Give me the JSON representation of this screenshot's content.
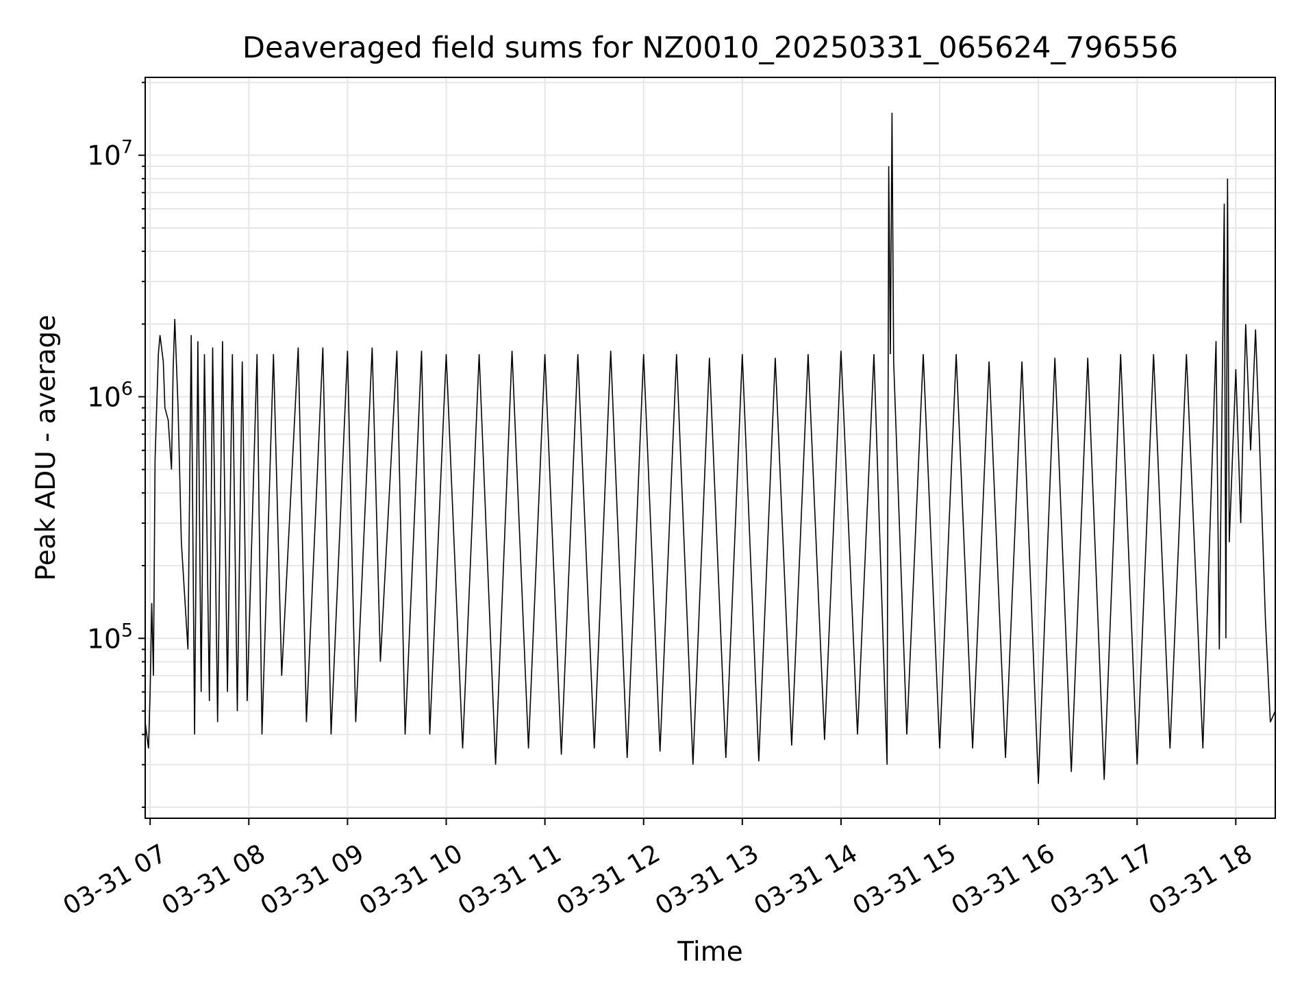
{
  "chart_data": {
    "type": "line",
    "title": "Deaveraged field sums for NZ0010_20250331_065624_796556",
    "xlabel": "Time",
    "ylabel": "Peak ADU - average",
    "y_scale": "log",
    "grid": true,
    "line_color": "#000000",
    "grid_color": "#e6e6e6",
    "xlim": [
      "2025-03-31 06:57",
      "2025-03-31 18:24"
    ],
    "ylim": [
      18000,
      21000000
    ],
    "x_ticks": [
      {
        "t": "2025-03-31 07:00",
        "label": "03-31 07"
      },
      {
        "t": "2025-03-31 08:00",
        "label": "03-31 08"
      },
      {
        "t": "2025-03-31 09:00",
        "label": "03-31 09"
      },
      {
        "t": "2025-03-31 10:00",
        "label": "03-31 10"
      },
      {
        "t": "2025-03-31 11:00",
        "label": "03-31 11"
      },
      {
        "t": "2025-03-31 12:00",
        "label": "03-31 12"
      },
      {
        "t": "2025-03-31 13:00",
        "label": "03-31 13"
      },
      {
        "t": "2025-03-31 14:00",
        "label": "03-31 14"
      },
      {
        "t": "2025-03-31 15:00",
        "label": "03-31 15"
      },
      {
        "t": "2025-03-31 16:00",
        "label": "03-31 16"
      },
      {
        "t": "2025-03-31 17:00",
        "label": "03-31 17"
      },
      {
        "t": "2025-03-31 18:00",
        "label": "03-31 18"
      }
    ],
    "y_ticks": [
      {
        "value": 100000,
        "base": "10",
        "exp": "5"
      },
      {
        "value": 1000000,
        "base": "10",
        "exp": "6"
      },
      {
        "value": 10000000,
        "base": "10",
        "exp": "7"
      }
    ],
    "series": [
      {
        "points": [
          [
            "2025-03-31 06:57",
            45000
          ],
          [
            "2025-03-31 06:59",
            35000
          ],
          [
            "2025-03-31 07:00",
            60000
          ],
          [
            "2025-03-31 07:01",
            140000
          ],
          [
            "2025-03-31 07:02",
            70000
          ],
          [
            "2025-03-31 07:03",
            550000
          ],
          [
            "2025-03-31 07:05",
            1500000
          ],
          [
            "2025-03-31 07:06",
            1800000
          ],
          [
            "2025-03-31 07:08",
            1400000
          ],
          [
            "2025-03-31 07:09",
            900000
          ],
          [
            "2025-03-31 07:11",
            800000
          ],
          [
            "2025-03-31 07:13",
            500000
          ],
          [
            "2025-03-31 07:14",
            1300000
          ],
          [
            "2025-03-31 07:15",
            2100000
          ],
          [
            "2025-03-31 07:17",
            900000
          ],
          [
            "2025-03-31 07:19",
            250000
          ],
          [
            "2025-03-31 07:21",
            150000
          ],
          [
            "2025-03-31 07:23",
            90000
          ],
          [
            "2025-03-31 07:25",
            1800000
          ],
          [
            "2025-03-31 07:27",
            40000
          ],
          [
            "2025-03-31 07:29",
            1700000
          ],
          [
            "2025-03-31 07:31",
            60000
          ],
          [
            "2025-03-31 07:33",
            1500000
          ],
          [
            "2025-03-31 07:36",
            55000
          ],
          [
            "2025-03-31 07:38",
            1600000
          ],
          [
            "2025-03-31 07:41",
            45000
          ],
          [
            "2025-03-31 07:44",
            1700000
          ],
          [
            "2025-03-31 07:47",
            60000
          ],
          [
            "2025-03-31 07:50",
            1500000
          ],
          [
            "2025-03-31 07:53",
            50000
          ],
          [
            "2025-03-31 07:56",
            1400000
          ],
          [
            "2025-03-31 07:59",
            55000
          ],
          [
            "2025-03-31 08:05",
            1500000
          ],
          [
            "2025-03-31 08:08",
            40000
          ],
          [
            "2025-03-31 08:15",
            1500000
          ],
          [
            "2025-03-31 08:20",
            70000
          ],
          [
            "2025-03-31 08:30",
            1600000
          ],
          [
            "2025-03-31 08:35",
            45000
          ],
          [
            "2025-03-31 08:45",
            1600000
          ],
          [
            "2025-03-31 08:50",
            40000
          ],
          [
            "2025-03-31 09:00",
            1550000
          ],
          [
            "2025-03-31 09:05",
            45000
          ],
          [
            "2025-03-31 09:15",
            1600000
          ],
          [
            "2025-03-31 09:20",
            80000
          ],
          [
            "2025-03-31 09:30",
            1550000
          ],
          [
            "2025-03-31 09:35",
            40000
          ],
          [
            "2025-03-31 09:45",
            1550000
          ],
          [
            "2025-03-31 09:50",
            40000
          ],
          [
            "2025-03-31 10:00",
            1500000
          ],
          [
            "2025-03-31 10:10",
            35000
          ],
          [
            "2025-03-31 10:20",
            1500000
          ],
          [
            "2025-03-31 10:30",
            30000
          ],
          [
            "2025-03-31 10:40",
            1550000
          ],
          [
            "2025-03-31 10:50",
            35000
          ],
          [
            "2025-03-31 11:00",
            1500000
          ],
          [
            "2025-03-31 11:10",
            33000
          ],
          [
            "2025-03-31 11:20",
            1500000
          ],
          [
            "2025-03-31 11:30",
            35000
          ],
          [
            "2025-03-31 11:40",
            1550000
          ],
          [
            "2025-03-31 11:50",
            32000
          ],
          [
            "2025-03-31 12:00",
            1500000
          ],
          [
            "2025-03-31 12:10",
            34000
          ],
          [
            "2025-03-31 12:20",
            1500000
          ],
          [
            "2025-03-31 12:30",
            30000
          ],
          [
            "2025-03-31 12:40",
            1450000
          ],
          [
            "2025-03-31 12:50",
            32000
          ],
          [
            "2025-03-31 13:00",
            1500000
          ],
          [
            "2025-03-31 13:10",
            31000
          ],
          [
            "2025-03-31 13:20",
            1450000
          ],
          [
            "2025-03-31 13:30",
            36000
          ],
          [
            "2025-03-31 13:40",
            1500000
          ],
          [
            "2025-03-31 13:50",
            38000
          ],
          [
            "2025-03-31 14:00",
            1550000
          ],
          [
            "2025-03-31 14:10",
            40000
          ],
          [
            "2025-03-31 14:20",
            1500000
          ],
          [
            "2025-03-31 14:28",
            30000
          ],
          [
            "2025-03-31 14:29",
            9000000
          ],
          [
            "2025-03-31 14:30",
            1500000
          ],
          [
            "2025-03-31 14:31",
            15000000
          ],
          [
            "2025-03-31 14:32",
            1400000
          ],
          [
            "2025-03-31 14:40",
            40000
          ],
          [
            "2025-03-31 14:50",
            1500000
          ],
          [
            "2025-03-31 15:00",
            35000
          ],
          [
            "2025-03-31 15:10",
            1500000
          ],
          [
            "2025-03-31 15:20",
            35000
          ],
          [
            "2025-03-31 15:30",
            1400000
          ],
          [
            "2025-03-31 15:40",
            32000
          ],
          [
            "2025-03-31 15:50",
            1400000
          ],
          [
            "2025-03-31 16:00",
            25000
          ],
          [
            "2025-03-31 16:10",
            1450000
          ],
          [
            "2025-03-31 16:20",
            28000
          ],
          [
            "2025-03-31 16:30",
            1450000
          ],
          [
            "2025-03-31 16:40",
            26000
          ],
          [
            "2025-03-31 16:50",
            1500000
          ],
          [
            "2025-03-31 17:00",
            30000
          ],
          [
            "2025-03-31 17:10",
            1500000
          ],
          [
            "2025-03-31 17:20",
            35000
          ],
          [
            "2025-03-31 17:30",
            1500000
          ],
          [
            "2025-03-31 17:40",
            35000
          ],
          [
            "2025-03-31 17:48",
            1700000
          ],
          [
            "2025-03-31 17:50",
            90000
          ],
          [
            "2025-03-31 17:53",
            6300000
          ],
          [
            "2025-03-31 17:54",
            100000
          ],
          [
            "2025-03-31 17:55",
            8000000
          ],
          [
            "2025-03-31 17:56",
            250000
          ],
          [
            "2025-03-31 18:00",
            1300000
          ],
          [
            "2025-03-31 18:03",
            300000
          ],
          [
            "2025-03-31 18:06",
            2000000
          ],
          [
            "2025-03-31 18:09",
            600000
          ],
          [
            "2025-03-31 18:12",
            1900000
          ],
          [
            "2025-03-31 18:15",
            500000
          ],
          [
            "2025-03-31 18:18",
            120000
          ],
          [
            "2025-03-31 18:21",
            45000
          ],
          [
            "2025-03-31 18:24",
            50000
          ]
        ]
      }
    ]
  }
}
